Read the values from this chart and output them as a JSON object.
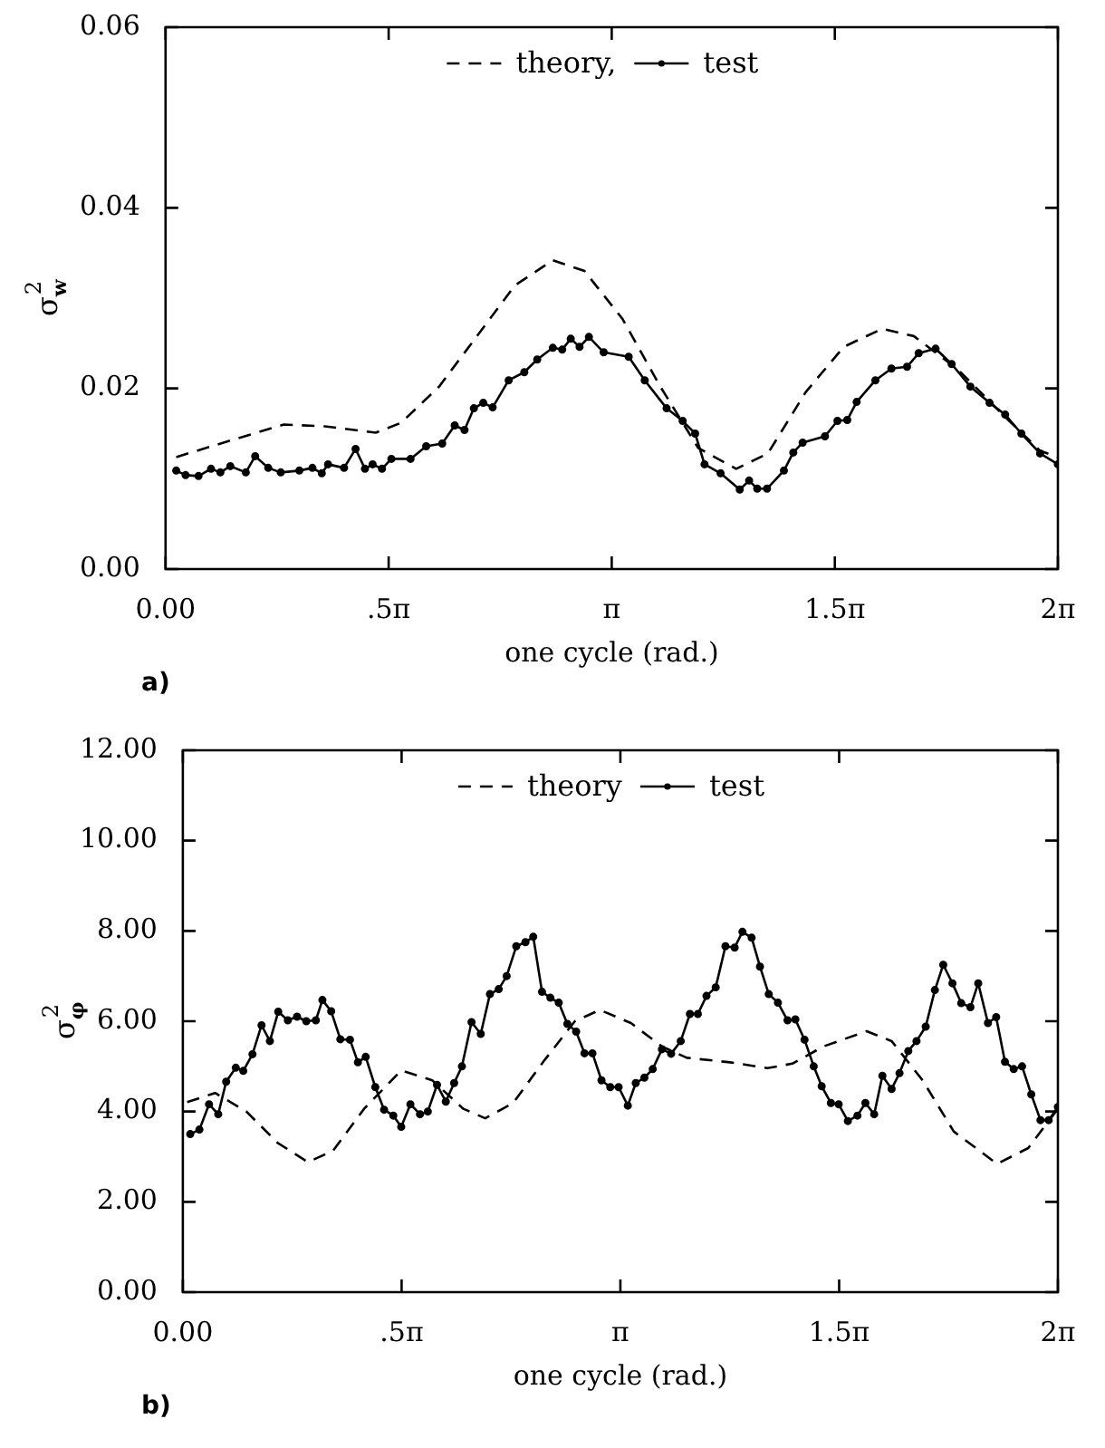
{
  "chart_data": [
    {
      "type": "line",
      "xlabel": "one cycle (rad.)",
      "ylabel": "σ$_{w}$$^{2}$",
      "annotations": [
        "a)"
      ],
      "legend": "top",
      "grid": false,
      "xlim": [
        0,
        6.2832
      ],
      "xticks": [
        {
          "value": 0,
          "label": "0.00"
        },
        {
          "value": 1.5708,
          "label": ".5π"
        },
        {
          "value": 3.1416,
          "label": "π"
        },
        {
          "value": 4.7124,
          "label": "1.5π"
        },
        {
          "value": 6.2832,
          "label": "2π"
        }
      ],
      "ylim": [
        0,
        0.06
      ],
      "yticks": [
        {
          "value": 0,
          "label": "0.00"
        },
        {
          "value": 0.02,
          "label": "0.02"
        },
        {
          "value": 0.04,
          "label": "0.04"
        },
        {
          "value": 0.06,
          "label": "0.06"
        }
      ],
      "series": [
        {
          "name": "theory,",
          "color": "#000000",
          "line_style": "dashed",
          "marker": "none",
          "x": [
            0.075,
            0.408,
            0.833,
            1.122,
            1.48,
            1.659,
            1.926,
            2.193,
            2.46,
            2.727,
            2.95,
            3.217,
            3.484,
            3.751,
            4.018,
            4.241,
            4.508,
            4.775,
            5.045,
            5.268,
            5.579,
            5.934,
            6.158,
            6.283
          ],
          "values": [
            0.0124,
            0.014,
            0.016,
            0.0158,
            0.0151,
            0.0162,
            0.0202,
            0.0258,
            0.0314,
            0.0342,
            0.033,
            0.0277,
            0.0202,
            0.0134,
            0.0111,
            0.0128,
            0.0196,
            0.0246,
            0.0266,
            0.0258,
            0.0221,
            0.0165,
            0.0131,
            0.0124
          ]
        },
        {
          "name": "test",
          "color": "#000000",
          "line_style": "solid",
          "marker": "circle",
          "x": [
            0.075,
            0.141,
            0.232,
            0.32,
            0.386,
            0.456,
            0.565,
            0.631,
            0.723,
            0.811,
            0.942,
            1.034,
            1.1,
            1.144,
            1.257,
            1.338,
            1.404,
            1.458,
            1.524,
            1.59,
            1.725,
            1.835,
            1.948,
            2.036,
            2.105,
            2.171,
            2.237,
            2.303,
            2.416,
            2.526,
            2.617,
            2.727,
            2.793,
            2.853,
            2.915,
            2.981,
            3.085,
            3.261,
            3.374,
            3.528,
            3.641,
            3.729,
            3.795,
            3.908,
            4.043,
            4.109,
            4.166,
            4.235,
            4.354,
            4.42,
            4.486,
            4.643,
            4.731,
            4.8,
            4.866,
            4.998,
            5.111,
            5.221,
            5.303,
            5.422,
            5.535,
            5.667,
            5.802,
            5.912,
            6.026,
            6.158,
            6.283
          ],
          "values": [
            0.0109,
            0.0104,
            0.0103,
            0.0111,
            0.0107,
            0.0114,
            0.0107,
            0.0125,
            0.0112,
            0.0107,
            0.0109,
            0.0112,
            0.0106,
            0.0116,
            0.0112,
            0.0133,
            0.0111,
            0.0116,
            0.0111,
            0.0122,
            0.0122,
            0.0136,
            0.0139,
            0.0159,
            0.0154,
            0.0178,
            0.0184,
            0.0179,
            0.0209,
            0.0218,
            0.0232,
            0.0245,
            0.0243,
            0.0255,
            0.0246,
            0.0257,
            0.024,
            0.0235,
            0.0209,
            0.0178,
            0.0164,
            0.015,
            0.0116,
            0.0106,
            0.0088,
            0.0098,
            0.0089,
            0.0089,
            0.0109,
            0.0129,
            0.014,
            0.0147,
            0.0164,
            0.0165,
            0.0185,
            0.0209,
            0.0222,
            0.0224,
            0.0239,
            0.0244,
            0.0227,
            0.0202,
            0.0184,
            0.0171,
            0.015,
            0.0128,
            0.0116
          ]
        }
      ]
    },
    {
      "type": "line",
      "xlabel": "one cycle (rad.)",
      "ylabel": "σ$_{φ}$$^{2}$",
      "annotations": [
        "b)"
      ],
      "legend": "top",
      "grid": false,
      "xlim": [
        0,
        6.2832
      ],
      "xticks": [
        {
          "value": 0,
          "label": "0.00"
        },
        {
          "value": 1.5708,
          "label": ".5π"
        },
        {
          "value": 3.1416,
          "label": "π"
        },
        {
          "value": 4.7124,
          "label": "1.5π"
        },
        {
          "value": 6.2832,
          "label": "2π"
        }
      ],
      "ylim": [
        0,
        12
      ],
      "yticks": [
        {
          "value": 0,
          "label": "0.00"
        },
        {
          "value": 2,
          "label": "2.00"
        },
        {
          "value": 4,
          "label": "4.00"
        },
        {
          "value": 6,
          "label": "6.00"
        },
        {
          "value": 8,
          "label": "8.00"
        },
        {
          "value": 10,
          "label": "10.00"
        },
        {
          "value": 12,
          "label": "12.00"
        }
      ],
      "series": [
        {
          "name": "theory",
          "color": "#000000",
          "line_style": "dashed",
          "marker": "none",
          "x": [
            0.031,
            0.232,
            0.456,
            0.679,
            0.898,
            1.078,
            1.301,
            1.568,
            1.791,
            2.014,
            2.171,
            2.372,
            2.595,
            2.815,
            2.994,
            3.217,
            3.44,
            3.619,
            3.93,
            4.197,
            4.376,
            4.599,
            4.91,
            5.089,
            5.312,
            5.535,
            5.846,
            6.07,
            6.283
          ],
          "values": [
            4.21,
            4.41,
            4.0,
            3.31,
            2.88,
            3.13,
            4.06,
            4.91,
            4.69,
            4.06,
            3.85,
            4.19,
            5.13,
            6.0,
            6.25,
            5.96,
            5.44,
            5.19,
            5.09,
            4.96,
            5.06,
            5.44,
            5.78,
            5.56,
            4.69,
            3.56,
            2.84,
            3.19,
            4.06
          ]
        },
        {
          "name": "test",
          "color": "#000000",
          "line_style": "solid",
          "marker": "circle",
          "x": [
            0.053,
            0.119,
            0.188,
            0.254,
            0.311,
            0.38,
            0.434,
            0.5,
            0.565,
            0.625,
            0.685,
            0.754,
            0.82,
            0.886,
            0.955,
            1.002,
            1.065,
            1.131,
            1.2,
            1.257,
            1.313,
            1.382,
            1.445,
            1.511,
            1.568,
            1.634,
            1.703,
            1.759,
            1.825,
            1.888,
            1.948,
            2.004,
            2.073,
            2.139,
            2.205,
            2.268,
            2.325,
            2.394,
            2.46,
            2.516,
            2.579,
            2.639,
            2.699,
            2.761,
            2.824,
            2.884,
            2.941,
            3.006,
            3.069,
            3.129,
            3.195,
            3.252,
            3.314,
            3.374,
            3.44,
            3.506,
            3.575,
            3.641,
            3.698,
            3.76,
            3.826,
            3.896,
            3.962,
            4.018,
            4.084,
            4.144,
            4.207,
            4.273,
            4.342,
            4.398,
            4.464,
            4.53,
            4.587,
            4.653,
            4.709,
            4.775,
            4.844,
            4.901,
            4.964,
            5.023,
            5.089,
            5.146,
            5.209,
            5.268,
            5.334,
            5.4,
            5.46,
            5.526,
            5.589,
            5.655,
            5.711,
            5.781,
            5.84,
            5.903,
            5.966,
            6.026,
            6.092,
            6.158,
            6.217,
            6.283
          ],
          "values": [
            3.5,
            3.6,
            4.16,
            3.94,
            4.66,
            4.97,
            4.9,
            5.27,
            5.91,
            5.56,
            6.21,
            6.02,
            6.1,
            6.0,
            6.02,
            6.47,
            6.22,
            5.6,
            5.59,
            5.09,
            5.21,
            4.54,
            4.04,
            3.91,
            3.66,
            4.16,
            3.94,
            4.0,
            4.59,
            4.22,
            4.63,
            5.0,
            5.98,
            5.72,
            6.6,
            6.71,
            7.0,
            7.66,
            7.75,
            7.87,
            6.65,
            6.52,
            6.41,
            5.94,
            5.77,
            5.29,
            5.29,
            4.69,
            4.54,
            4.54,
            4.13,
            4.63,
            4.75,
            4.94,
            5.38,
            5.28,
            5.56,
            6.16,
            6.16,
            6.56,
            6.75,
            7.66,
            7.63,
            7.98,
            7.85,
            7.21,
            6.6,
            6.41,
            6.02,
            6.04,
            5.59,
            5.0,
            4.56,
            4.19,
            4.16,
            3.79,
            3.91,
            4.19,
            3.94,
            4.79,
            4.5,
            4.85,
            5.34,
            5.56,
            5.88,
            6.69,
            7.25,
            6.84,
            6.4,
            6.31,
            6.84,
            5.96,
            6.09,
            5.1,
            4.94,
            5.0,
            4.38,
            3.81,
            3.81,
            4.1
          ]
        }
      ]
    }
  ]
}
